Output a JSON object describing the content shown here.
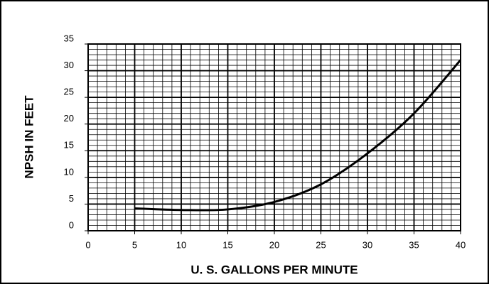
{
  "chart_data": {
    "type": "line",
    "xlabel": "U. S. GALLONS PER MINUTE",
    "ylabel": "NPSH IN FEET",
    "x": [
      5,
      10,
      15,
      20,
      25,
      30,
      35,
      40
    ],
    "series": [
      {
        "color": "#000000",
        "values": [
          4.2,
          3.9,
          4.0,
          5.4,
          8.7,
          14.5,
          22,
          32
        ]
      }
    ],
    "xlim": [
      0,
      40
    ],
    "xticks": [
      0,
      5,
      10,
      15,
      20,
      25,
      30,
      35,
      40
    ],
    "ylim": [
      0,
      35
    ],
    "yticks": [
      0,
      5,
      10,
      15,
      20,
      25,
      30,
      35
    ],
    "grid": true
  }
}
